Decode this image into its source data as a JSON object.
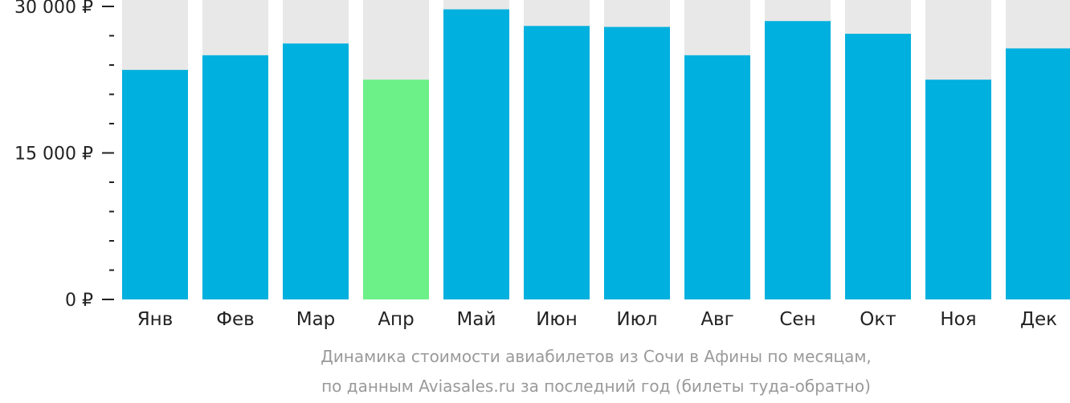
{
  "chart_data": {
    "type": "bar",
    "categories": [
      "Янв",
      "Фев",
      "Мар",
      "Апр",
      "Май",
      "Июн",
      "Июл",
      "Авг",
      "Сен",
      "Окт",
      "Ноя",
      "Дек"
    ],
    "values": [
      23500,
      25000,
      26200,
      22500,
      29700,
      28000,
      27900,
      25000,
      28500,
      27200,
      22500,
      25700
    ],
    "highlight_index": 3,
    "ylim": [
      0,
      30000
    ],
    "y_ticks": [
      {
        "value": 0,
        "label": "0 ₽"
      },
      {
        "value": 15000,
        "label": "15 000 ₽"
      },
      {
        "value": 30000,
        "label": "30 000 ₽"
      }
    ],
    "y_minor_step": 3000,
    "caption": [
      "Динамика стоимости авиабилетов из Сочи в Афины по месяцам,",
      "по данным Aviasales.ru за последний год (билеты туда-обратно)"
    ],
    "colors": {
      "bar": "#00b0de",
      "highlight": "#6cf088",
      "track": "#e8e8e8",
      "axis": "#222222",
      "caption": "#9a9a9a"
    }
  }
}
